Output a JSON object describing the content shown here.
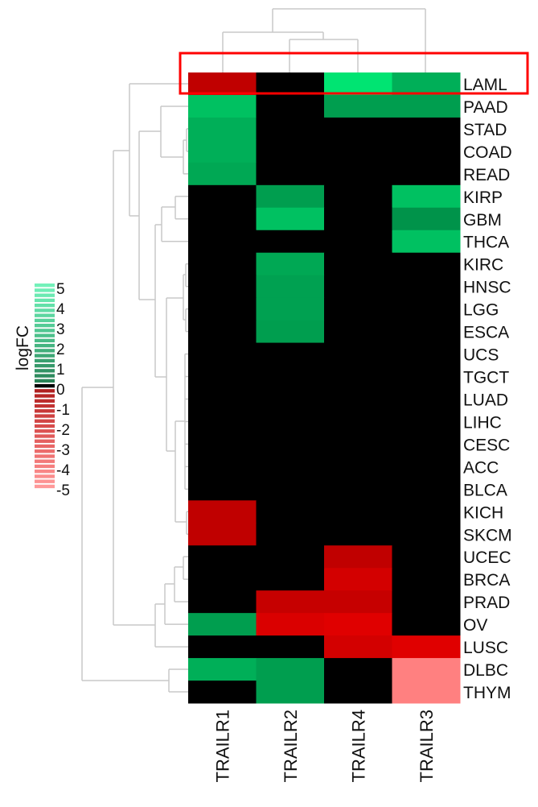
{
  "chart_data": {
    "type": "heatmap",
    "title": "",
    "columns": [
      "TRAILR1",
      "TRAILR2",
      "TRAILR4",
      "TRAILR3"
    ],
    "rows": [
      "LAML",
      "PAAD",
      "STAD",
      "COAD",
      "READ",
      "KIRP",
      "GBM",
      "THCA",
      "KIRC",
      "HNSC",
      "LGG",
      "ESCA",
      "UCS",
      "TGCT",
      "LUAD",
      "LIHC",
      "CESC",
      "ACC",
      "BLCA",
      "KICH",
      "SKCM",
      "UCEC",
      "BRCA",
      "PRAD",
      "OV",
      "LUSC",
      "DLBC",
      "THYM"
    ],
    "values": [
      [
        -2,
        0,
        4.5,
        3
      ],
      [
        3.5,
        0,
        2.5,
        2.5
      ],
      [
        3,
        0,
        0,
        0
      ],
      [
        3,
        0,
        0,
        0
      ],
      [
        2.8,
        0,
        0,
        0
      ],
      [
        0,
        2.5,
        0,
        3.5
      ],
      [
        0,
        3.5,
        0,
        2.2
      ],
      [
        0,
        0,
        0,
        3.5
      ],
      [
        0,
        2.8,
        0,
        0
      ],
      [
        0,
        2.6,
        0,
        0
      ],
      [
        0,
        2.6,
        0,
        0
      ],
      [
        0,
        2.5,
        0,
        0
      ],
      [
        0,
        0,
        0,
        0
      ],
      [
        0,
        0,
        0,
        0
      ],
      [
        0,
        0,
        0,
        0
      ],
      [
        0,
        0,
        0,
        0
      ],
      [
        0,
        0,
        0,
        0
      ],
      [
        0,
        0,
        0,
        0
      ],
      [
        0,
        0,
        0,
        0
      ],
      [
        -2,
        0,
        0,
        0
      ],
      [
        -2,
        0,
        0,
        0
      ],
      [
        0,
        0,
        -2,
        0
      ],
      [
        0,
        0,
        -2.6,
        0
      ],
      [
        0,
        -2.2,
        -2.2,
        0
      ],
      [
        2.5,
        -2.8,
        -3,
        0
      ],
      [
        0,
        0,
        -2.6,
        -3
      ],
      [
        3,
        2.5,
        0,
        -5
      ],
      [
        0,
        2.5,
        0,
        -5
      ]
    ],
    "legend": {
      "title": "logFC",
      "ticks": [
        "5",
        "4",
        "3",
        "2",
        "1",
        "0",
        "-1",
        "-2",
        "-3",
        "-4",
        "-5"
      ],
      "range": [
        -5,
        5
      ],
      "positive_color": "#00e676",
      "zero_color": "#000000",
      "negative_color": "#ff0000",
      "placement": "left"
    },
    "dendrograms": {
      "rows": true,
      "columns": true,
      "line_color": "#c8c8c8"
    },
    "highlight": {
      "row": "LAML",
      "color": "#ff0000"
    }
  }
}
